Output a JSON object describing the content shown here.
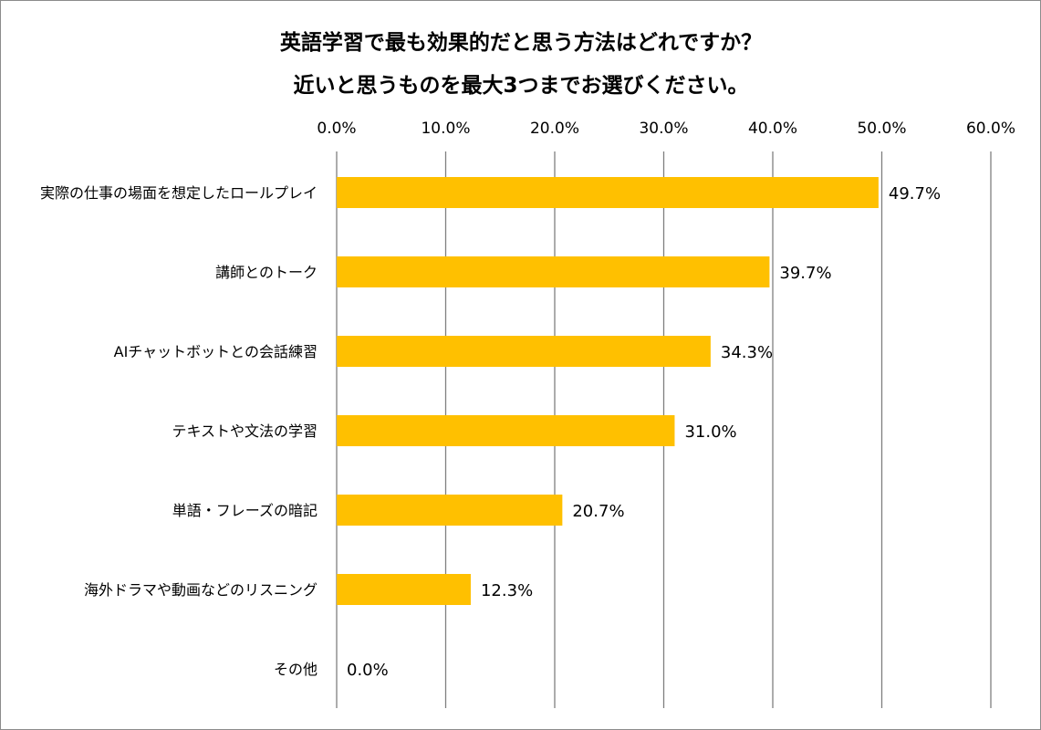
{
  "chart_data": {
    "type": "bar",
    "orientation": "horizontal",
    "title": [
      "英語学習で最も効果的だと思う方法はどれですか？",
      "近いと思うものを最大3つまでお選びください。"
    ],
    "categories": [
      "実際の仕事の場面を想定したロールプレイ",
      "講師とのトーク",
      "AIチャットボットとの会話練習",
      "テキストや文法の学習",
      "単語・フレーズの暗記",
      "海外ドラマや動画などのリスニング",
      "その他"
    ],
    "values": [
      49.7,
      39.7,
      34.3,
      31.0,
      20.7,
      12.3,
      0.0
    ],
    "data_labels": [
      "49.7%",
      "39.7%",
      "34.3%",
      "31.0%",
      "20.7%",
      "12.3%",
      "0.0%"
    ],
    "xlim": [
      0,
      60
    ],
    "x_ticks": [
      "0.0%",
      "10.0%",
      "20.0%",
      "30.0%",
      "40.0%",
      "50.0%",
      "60.0%"
    ],
    "x_axis_position": "top",
    "grid": "vertical",
    "legend": "none",
    "bar_color": "#FFC000",
    "grid_color": "#7f7f7f"
  }
}
